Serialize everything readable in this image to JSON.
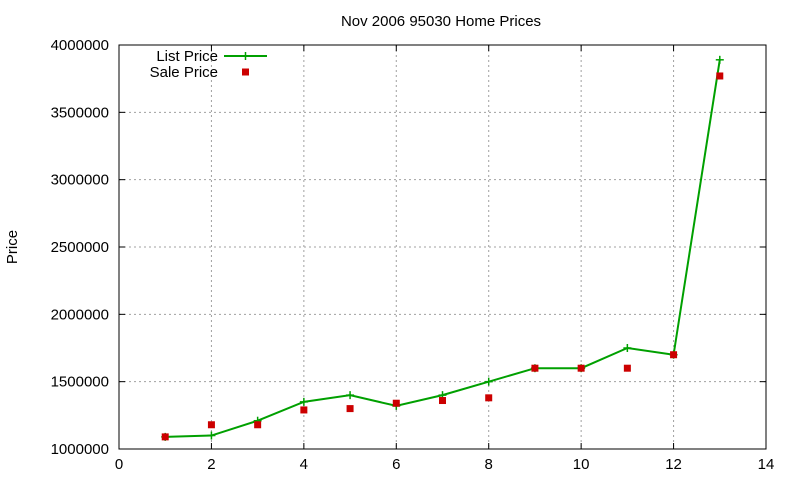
{
  "chart_data": {
    "type": "line",
    "title": "Nov 2006 95030 Home Prices",
    "xlabel": "",
    "ylabel": "Price",
    "xlim": [
      0,
      14
    ],
    "ylim": [
      1000000,
      4000000
    ],
    "xticks": [
      0,
      2,
      4,
      6,
      8,
      10,
      12,
      14
    ],
    "yticks": [
      1000000,
      1500000,
      2000000,
      2500000,
      3000000,
      3500000,
      4000000
    ],
    "x_tick_labels": [
      "0",
      "2",
      "4",
      "6",
      "8",
      "10",
      "12",
      "14"
    ],
    "y_tick_labels": [
      "1000000",
      "1500000",
      "2000000",
      "2500000",
      "3000000",
      "3500000",
      "4000000"
    ],
    "grid": true,
    "legend_position": "top-left",
    "series": [
      {
        "name": "List Price",
        "style": "linespoints",
        "marker": "plus",
        "color": "#00a000",
        "x": [
          1,
          2,
          3,
          4,
          5,
          6,
          7,
          8,
          9,
          10,
          11,
          12,
          13
        ],
        "y": [
          1090000,
          1100000,
          1210000,
          1350000,
          1400000,
          1320000,
          1400000,
          1500000,
          1600000,
          1600000,
          1750000,
          1700000,
          3890000
        ]
      },
      {
        "name": "Sale Price",
        "style": "points",
        "marker": "square",
        "color": "#cc0000",
        "x": [
          1,
          2,
          3,
          4,
          5,
          6,
          7,
          8,
          9,
          10,
          11,
          12,
          13
        ],
        "y": [
          1090000,
          1180000,
          1180000,
          1290000,
          1300000,
          1340000,
          1360000,
          1380000,
          1600000,
          1600000,
          1600000,
          1700000,
          3770000
        ]
      }
    ]
  }
}
